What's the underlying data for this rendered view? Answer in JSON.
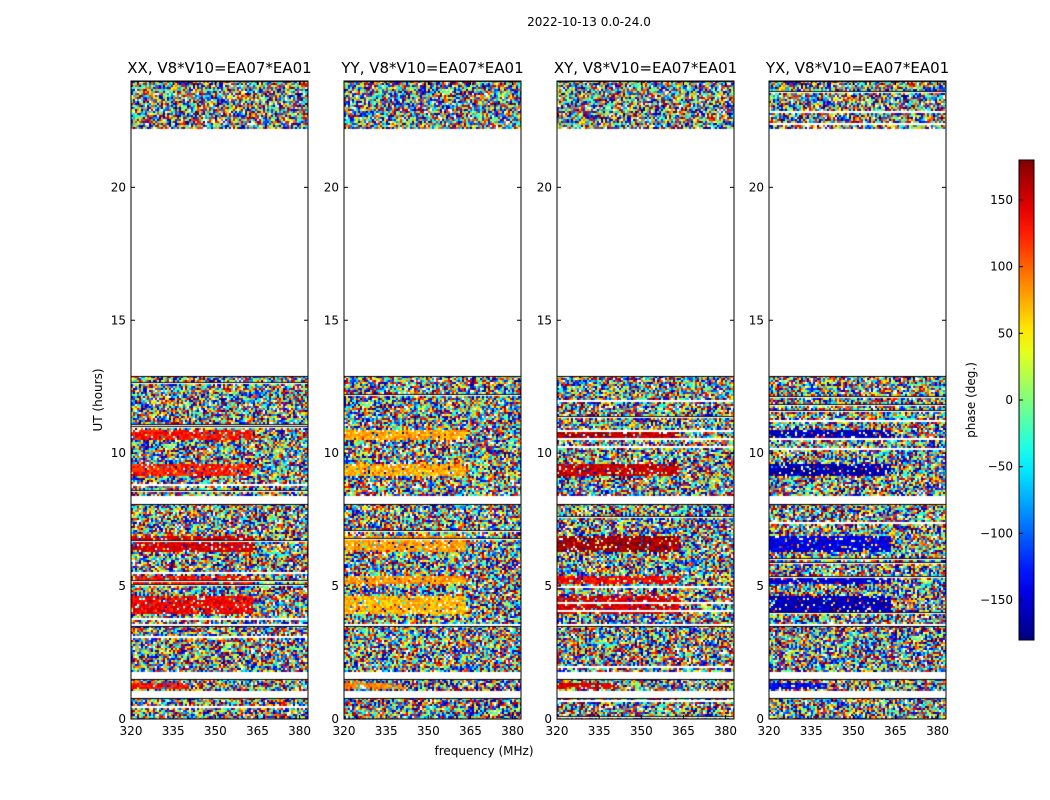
{
  "chart_data": {
    "type": "heatmap",
    "suptitle": "2022-10-13 0.0-24.0",
    "panels": [
      {
        "title": "XX, V8*V10=EA07*EA01",
        "pol": "XX"
      },
      {
        "title": "YY, V8*V10=EA07*EA01",
        "pol": "YY"
      },
      {
        "title": "XY, V8*V10=EA07*EA01",
        "pol": "XY"
      },
      {
        "title": "YX, V8*V10=EA07*EA01",
        "pol": "YX"
      }
    ],
    "xlabel": "frequency (MHz)",
    "ylabel": "UT (hours)",
    "xlim": [
      320,
      383
    ],
    "ylim": [
      0,
      24
    ],
    "xticks": [
      320,
      335,
      350,
      365,
      380
    ],
    "xtick_labels": [
      "320",
      "335",
      "350",
      "365",
      "380"
    ],
    "yticks": [
      0,
      5,
      10,
      15,
      20
    ],
    "ytick_labels": [
      "0",
      "5",
      "10",
      "15",
      "20"
    ],
    "colorbar": {
      "label": "phase (deg.)",
      "range": [
        -180,
        180
      ],
      "ticks": [
        -150,
        -100,
        -50,
        0,
        50,
        100,
        150
      ],
      "tick_labels": [
        "−150",
        "−100",
        "−50",
        "0",
        "50",
        "100",
        "150"
      ],
      "colormap": "jet"
    },
    "data_blocks": [
      [
        0.0,
        0.8
      ],
      [
        1.05,
        1.5
      ],
      [
        1.75,
        3.5
      ],
      [
        3.6,
        8.1
      ],
      [
        8.4,
        12.9
      ],
      [
        22.2,
        24.0
      ]
    ],
    "coherent_bands": [
      {
        "t0": 4.0,
        "t1": 4.7,
        "f_end": 363,
        "phase": {
          "XX": 140,
          "YY": 70,
          "XY": 150,
          "YX": -160
        }
      },
      {
        "t0": 5.1,
        "t1": 5.4,
        "f_end": 363,
        "phase": {
          "XX": 130,
          "YY": 80,
          "XY": 140,
          "YX": -150
        }
      },
      {
        "t0": 6.3,
        "t1": 6.9,
        "f_end": 363,
        "phase": {
          "XX": 150,
          "YY": 80,
          "XY": 170,
          "YX": -145
        }
      },
      {
        "t0": 9.2,
        "t1": 9.6,
        "f_end": 363,
        "phase": {
          "XX": 125,
          "YY": 75,
          "XY": 155,
          "YX": -165
        }
      },
      {
        "t0": 10.5,
        "t1": 10.9,
        "f_end": 363,
        "phase": {
          "XX": 130,
          "YY": 75,
          "XY": 160,
          "YX": -160
        }
      },
      {
        "t0": 1.2,
        "t1": 1.4,
        "f_end": 340,
        "phase": {
          "XX": 130,
          "YY": 90,
          "XY": 150,
          "YX": -140
        }
      }
    ]
  }
}
